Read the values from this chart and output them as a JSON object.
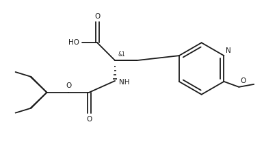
{
  "background_color": "#ffffff",
  "line_color": "#1a1a1a",
  "line_width": 1.3,
  "font_size": 7.5,
  "figsize": [
    3.86,
    2.1
  ],
  "dpi": 100,
  "stereo_label": "&1",
  "labels": {
    "O_carbonyl_carboxyl": "O",
    "HO": "HO",
    "NH": "NH",
    "O_boc_ester": "O",
    "O_boc_carbonyl": "O",
    "N_pyridine": "N",
    "O_methoxy": "O"
  }
}
